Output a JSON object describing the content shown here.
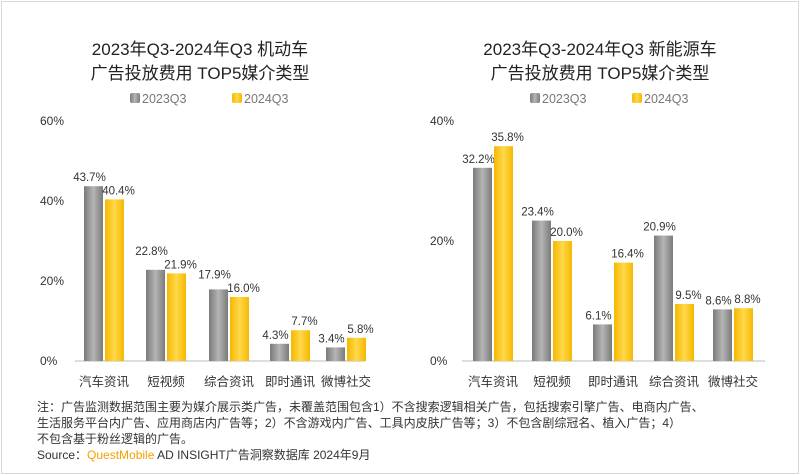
{
  "watermark": "QUESTMOBILE",
  "legend": [
    "2023Q3",
    "2024Q3"
  ],
  "colors": {
    "s2023": "#8c8c8c",
    "s2024": "#ffc000"
  },
  "chart_data": [
    {
      "type": "bar",
      "title": [
        "2023年Q3-2024年Q3 机动车",
        "广告投放费用 TOP5媒介类型"
      ],
      "categories": [
        "汽车资讯",
        "短视频",
        "综合资讯",
        "即时通讯",
        "微博社交"
      ],
      "series": [
        {
          "name": "2023Q3",
          "values": [
            43.7,
            22.8,
            17.9,
            4.3,
            3.4
          ]
        },
        {
          "name": "2024Q3",
          "values": [
            40.4,
            21.9,
            16.0,
            7.7,
            5.8
          ]
        }
      ],
      "yticks": [
        "0%",
        "20%",
        "40%",
        "60%"
      ],
      "ylim": [
        0,
        60
      ]
    },
    {
      "type": "bar",
      "title": [
        "2023年Q3-2024年Q3 新能源车",
        "广告投放费用 TOP5媒介类型"
      ],
      "categories": [
        "汽车资讯",
        "短视频",
        "即时通讯",
        "综合资讯",
        "微博社交"
      ],
      "series": [
        {
          "name": "2023Q3",
          "values": [
            32.2,
            23.4,
            6.1,
            20.9,
            8.6
          ]
        },
        {
          "name": "2024Q3",
          "values": [
            35.8,
            20.0,
            16.4,
            9.5,
            8.8
          ]
        }
      ],
      "yticks": [
        "0%",
        "20%",
        "40%"
      ],
      "ylim": [
        0,
        40
      ]
    }
  ],
  "note": [
    "注：广告监测数据范围主要为媒介展示类广告，未覆盖范围包含1）不含搜索逻辑相关广告，包括搜索引擎广告、电商内广告、",
    "生活服务平台内广告、应用商店内广告等；2）不含游戏内广告、工具内皮肤广告等；3）不包含剧综冠名、植入广告；4）",
    "不包含基于粉丝逻辑的广告。"
  ],
  "source": {
    "prefix": "Source：",
    "brand": "QuestMobile",
    "rest": " AD INSIGHT广告洞察数据库 2024年9月"
  }
}
